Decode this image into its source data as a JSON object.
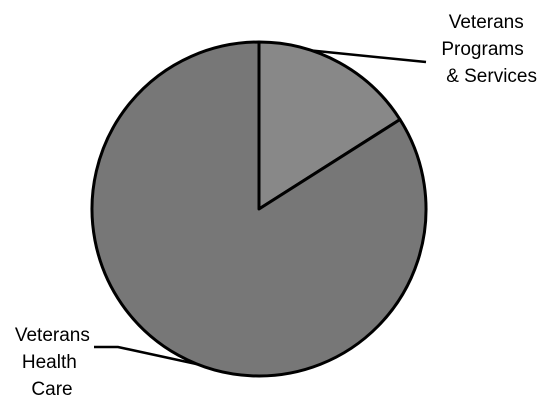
{
  "chart_data": {
    "type": "pie",
    "title": "",
    "slices": [
      {
        "label": "Veterans Programs & Services",
        "label_lines": [
          "Veterans",
          "Programs",
          "& Services"
        ],
        "value": 16,
        "color": "#888888"
      },
      {
        "label": "Veterans Health Care",
        "label_lines": [
          "Veterans",
          "Health",
          "Care"
        ],
        "value": 84,
        "color": "#777777"
      }
    ],
    "start_angle": "12 o'clock, clockwise",
    "legend": "none (callout labels)"
  }
}
